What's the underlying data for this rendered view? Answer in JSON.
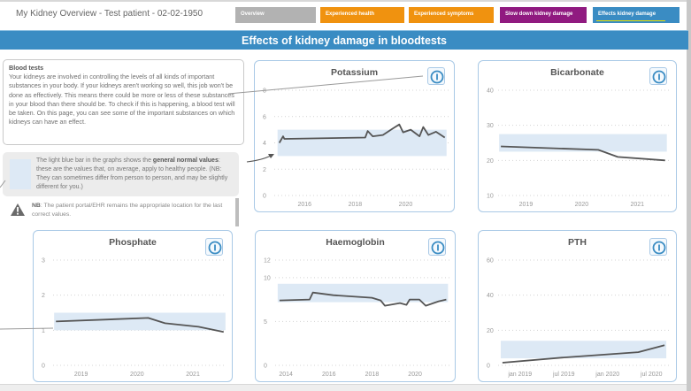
{
  "header": {
    "app_title": "My Kidney Overview - Test patient - 02-02-1950",
    "tabs": [
      {
        "label": "Overview",
        "color": "#b2b2b2",
        "active": false
      },
      {
        "label": "Experienced health",
        "color": "#f0920f",
        "active": false
      },
      {
        "label": "Experienced symptoms",
        "color": "#f0920f",
        "active": false
      },
      {
        "label": "Slow down kidney damage",
        "color": "#901a80",
        "active": false
      },
      {
        "label": "Effects kidney damage",
        "color": "#3a8cc3",
        "active": true
      }
    ]
  },
  "banner": {
    "title": "Effects of kidney damage in bloodtests"
  },
  "info": {
    "heading": "Blood tests",
    "body": "Your kidneys are involved in controlling the levels of all kinds of important substances in your body. If your kidneys aren't working so well, this job won't be done as effectively. This means there could be more or less of these substances in your blood than there should be. To check if this is happening, a blood test will be taken. On this page, you can see some of the important substances on which kidneys can have an effect."
  },
  "legend": {
    "text_before": "The light blue bar in the graphs shows the ",
    "text_bold": "general normal values",
    "text_after": ": these are the values that, on average, apply to healthy people. (NB: They can sometimes differ from person to person, and may be slightly different for you.)"
  },
  "warning": {
    "bold": "NB",
    "text": ": The patient portal/EHR remains the appropriate location for the last correct values."
  },
  "colors": {
    "accent": "#3a8cc3",
    "normal_band": "#dde9f5",
    "line": "#555555",
    "card_border": "#a9c9e6"
  },
  "chart_data": [
    {
      "id": "potassium",
      "type": "line",
      "title": "Potassium",
      "xlabel": "",
      "ylabel": "",
      "grid": true,
      "xlim": [
        2014.8,
        2021.7
      ],
      "ylim": [
        0,
        8
      ],
      "yticks": [
        0,
        2,
        4,
        6,
        8
      ],
      "xticks": [
        {
          "v": 2016,
          "label": "2016"
        },
        {
          "v": 2018,
          "label": "2018"
        },
        {
          "v": 2020,
          "label": "2020"
        }
      ],
      "normal_range": [
        3.0,
        5.0
      ],
      "x": [
        2015.0,
        2015.15,
        2015.2,
        2018.4,
        2018.5,
        2018.7,
        2019.1,
        2019.5,
        2019.75,
        2019.9,
        2020.2,
        2020.55,
        2020.7,
        2020.9,
        2021.2,
        2021.55
      ],
      "y": [
        4.0,
        4.5,
        4.3,
        4.4,
        4.9,
        4.5,
        4.6,
        5.1,
        5.4,
        4.8,
        5.0,
        4.5,
        5.2,
        4.6,
        4.85,
        4.4
      ]
    },
    {
      "id": "bicarbonate",
      "type": "line",
      "title": "Bicarbonate",
      "xlabel": "",
      "ylabel": "",
      "grid": true,
      "xlim": [
        2018.5,
        2021.6
      ],
      "ylim": [
        10,
        40
      ],
      "yticks": [
        10,
        20,
        30,
        40
      ],
      "xticks": [
        {
          "v": 2019,
          "label": "2019"
        },
        {
          "v": 2020,
          "label": "2020"
        },
        {
          "v": 2021,
          "label": "2021"
        }
      ],
      "normal_range": [
        22.5,
        27.5
      ],
      "x": [
        2018.55,
        2020.3,
        2020.65,
        2021.5
      ],
      "y": [
        24.0,
        23.0,
        21.0,
        20.0
      ]
    },
    {
      "id": "phosphate",
      "type": "line",
      "title": "Phosphate",
      "xlabel": "",
      "ylabel": "",
      "grid": true,
      "xlim": [
        2018.5,
        2021.6
      ],
      "ylim": [
        0,
        3
      ],
      "yticks": [
        0,
        1,
        2,
        3
      ],
      "xticks": [
        {
          "v": 2019,
          "label": "2019"
        },
        {
          "v": 2020,
          "label": "2020"
        },
        {
          "v": 2021,
          "label": "2021"
        }
      ],
      "normal_range": [
        1.0,
        1.5
      ],
      "x": [
        2018.55,
        2020.2,
        2020.5,
        2021.1,
        2021.55
      ],
      "y": [
        1.25,
        1.35,
        1.2,
        1.1,
        0.95
      ]
    },
    {
      "id": "haemoglobin",
      "type": "line",
      "title": "Haemoglobin",
      "xlabel": "",
      "ylabel": "",
      "grid": true,
      "xlim": [
        2013.5,
        2021.6
      ],
      "ylim": [
        0,
        12
      ],
      "yticks": [
        0,
        5,
        10,
        12
      ],
      "xticks": [
        {
          "v": 2014,
          "label": "2014"
        },
        {
          "v": 2016,
          "label": "2016"
        },
        {
          "v": 2018,
          "label": "2018"
        },
        {
          "v": 2020,
          "label": "2020"
        }
      ],
      "normal_range": [
        7.2,
        9.3
      ],
      "x": [
        2013.7,
        2015.1,
        2015.25,
        2016.2,
        2018.0,
        2018.4,
        2018.6,
        2019.3,
        2019.6,
        2019.75,
        2020.2,
        2020.5,
        2021.1,
        2021.45
      ],
      "y": [
        7.4,
        7.5,
        8.3,
        8.0,
        7.7,
        7.4,
        6.8,
        7.1,
        6.9,
        7.5,
        7.5,
        6.8,
        7.3,
        7.5
      ]
    },
    {
      "id": "pth",
      "type": "line",
      "title": "PTH",
      "xlabel": "",
      "ylabel": "",
      "grid": true,
      "xlim": [
        2018.75,
        2020.72
      ],
      "ylim": [
        0,
        60
      ],
      "yticks": [
        0,
        20,
        40,
        60
      ],
      "xticks": [
        {
          "v": 2019.0,
          "label": "jan 2019"
        },
        {
          "v": 2019.5,
          "label": "jul 2019"
        },
        {
          "v": 2020.0,
          "label": "jan 2020"
        },
        {
          "v": 2020.5,
          "label": "jul 2020"
        }
      ],
      "normal_range": [
        4.0,
        14.0
      ],
      "x": [
        2018.8,
        2019.5,
        2020.35,
        2020.65
      ],
      "y": [
        1.5,
        4.5,
        7.5,
        11.5
      ]
    }
  ]
}
